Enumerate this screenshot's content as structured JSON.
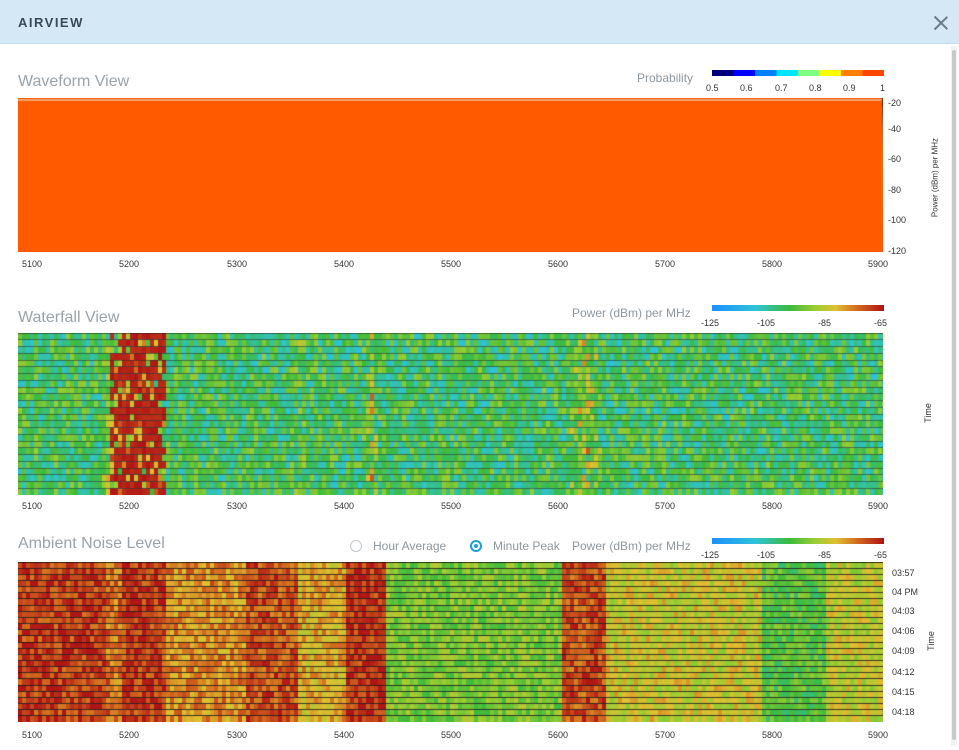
{
  "header": {
    "title": "AIRVIEW"
  },
  "waveform": {
    "title": "Waveform View",
    "legend_title": "Probability",
    "legend_ticks": [
      "0.5",
      "0.6",
      "0.7",
      "0.8",
      "0.9",
      "1"
    ],
    "legend_colors": [
      "#00007f",
      "#0000ff",
      "#0080ff",
      "#00e5ff",
      "#7fff7f",
      "#ffff00",
      "#ff8000",
      "#ff4500"
    ],
    "y_label": "Power (dBm) per MHz",
    "y_ticks": [
      "-20",
      "-40",
      "-60",
      "-80",
      "-100",
      "-120"
    ],
    "x_ticks": [
      "5100",
      "5200",
      "5300",
      "5400",
      "5500",
      "5600",
      "5700",
      "5800",
      "5900"
    ]
  },
  "waterfall": {
    "title": "Waterfall View",
    "legend_title": "Power (dBm) per MHz",
    "legend_ticks": [
      "-125",
      "-105",
      "-85",
      "-65"
    ],
    "y_label": "Time",
    "x_ticks": [
      "5100",
      "5200",
      "5300",
      "5400",
      "5500",
      "5600",
      "5700",
      "5800",
      "5900"
    ]
  },
  "ambient": {
    "title": "Ambient Noise Level",
    "option_hour": "Hour Average",
    "option_minute": "Minute Peak",
    "selected_option": "Minute Peak",
    "legend_title": "Power (dBm) per MHz",
    "legend_ticks": [
      "-125",
      "-105",
      "-85",
      "-65"
    ],
    "y_label": "Time",
    "time_ticks": [
      "03:57",
      "04 PM",
      "04:03",
      "04:06",
      "04:09",
      "04:12",
      "04:15",
      "04:18"
    ],
    "x_ticks": [
      "5100",
      "5200",
      "5300",
      "5400",
      "5500",
      "5600",
      "5700",
      "5800",
      "5900"
    ]
  },
  "colors": {
    "accent": "#1aa0dc",
    "header_bg": "#d4e9f5"
  }
}
